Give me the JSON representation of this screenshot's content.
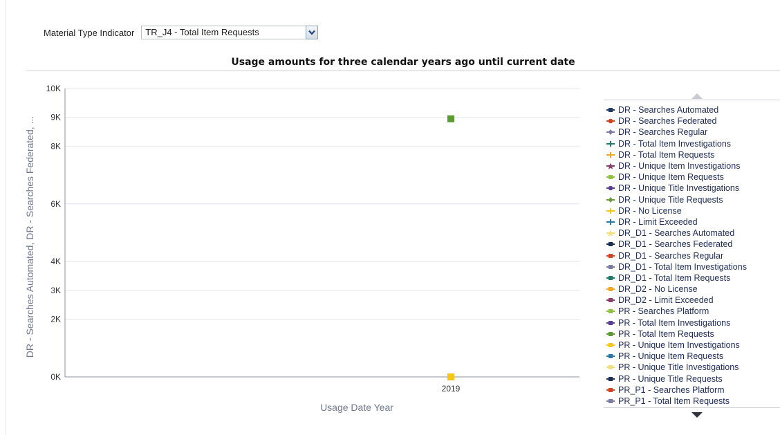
{
  "filter": {
    "label": "Material Type Indicator",
    "selected": "TR_J4 - Total Item Requests"
  },
  "chart_data": {
    "type": "scatter",
    "title": "Usage amounts for three calendar years ago until current date",
    "xlabel": "Usage Date Year",
    "ylabel": "DR - Searches Automated, DR - Searches Federated, ...",
    "categories": [
      "2019"
    ],
    "ylim": [
      0,
      10000
    ],
    "yticks": [
      {
        "value": 0,
        "label": "0K"
      },
      {
        "value": 2000,
        "label": "2K"
      },
      {
        "value": 3000,
        "label": "3K"
      },
      {
        "value": 4000,
        "label": "4K"
      },
      {
        "value": 6000,
        "label": "6K"
      },
      {
        "value": 8000,
        "label": "8K"
      },
      {
        "value": 9000,
        "label": "9K"
      },
      {
        "value": 10000,
        "label": "10K"
      }
    ],
    "grid": true,
    "legend_position": "right",
    "series": [
      {
        "name": "DR - Searches Automated",
        "color": "#1f3a66",
        "marker": "square"
      },
      {
        "name": "DR - Searches Federated",
        "color": "#d2451e",
        "marker": "circle"
      },
      {
        "name": "DR - Searches Regular",
        "color": "#7b7ba8",
        "marker": "diamond"
      },
      {
        "name": "DR - Total Item Investigations",
        "color": "#1f7a6e",
        "marker": "plus"
      },
      {
        "name": "DR - Total Item Requests",
        "color": "#f5a623",
        "marker": "plus"
      },
      {
        "name": "DR - Unique Item Investigations",
        "color": "#8e3b6e",
        "marker": "star"
      },
      {
        "name": "DR - Unique Item Requests",
        "color": "#8cc43f",
        "marker": "square"
      },
      {
        "name": "DR - Unique Title Investigations",
        "color": "#5b3f96",
        "marker": "circle"
      },
      {
        "name": "DR - Unique Title Requests",
        "color": "#6a9a3a",
        "marker": "diamond"
      },
      {
        "name": "DR - No License",
        "color": "#f5c518",
        "marker": "plus"
      },
      {
        "name": "DR - Limit Exceeded",
        "color": "#2a7aa8",
        "marker": "plus"
      },
      {
        "name": "DR_D1 - Searches Automated",
        "color": "#f4e07a",
        "marker": "star"
      },
      {
        "name": "DR_D1 - Searches Federated",
        "color": "#1a2f55",
        "marker": "square"
      },
      {
        "name": "DR_D1 - Searches Regular",
        "color": "#d2451e",
        "marker": "square"
      },
      {
        "name": "DR_D1 - Total Item Investigations",
        "color": "#7b7ba8",
        "marker": "square"
      },
      {
        "name": "DR_D1 - Total Item Requests",
        "color": "#1f7a6e",
        "marker": "square"
      },
      {
        "name": "DR_D2 - No License",
        "color": "#f5a623",
        "marker": "square"
      },
      {
        "name": "DR_D2 - Limit Exceeded",
        "color": "#8e3b6e",
        "marker": "square"
      },
      {
        "name": "PR - Searches Platform",
        "color": "#8cc43f",
        "marker": "square"
      },
      {
        "name": "PR - Total Item Investigations",
        "color": "#5b3f96",
        "marker": "square"
      },
      {
        "name": "PR - Total Item Requests",
        "color": "#5a9a32",
        "marker": "square",
        "points": [
          {
            "x": "2019",
            "y": 8950
          }
        ]
      },
      {
        "name": "PR - Unique Item Investigations",
        "color": "#f5c518",
        "marker": "square",
        "points": [
          {
            "x": "2019",
            "y": 0
          }
        ]
      },
      {
        "name": "PR - Unique Item Requests",
        "color": "#2a7aa8",
        "marker": "square"
      },
      {
        "name": "PR - Unique Title Investigations",
        "color": "#f4e07a",
        "marker": "square"
      },
      {
        "name": "PR - Unique Title Requests",
        "color": "#1a2f55",
        "marker": "square"
      },
      {
        "name": "PR_P1 - Searches Platform",
        "color": "#d2451e",
        "marker": "square"
      },
      {
        "name": "PR_P1 - Total Item Requests",
        "color": "#7b7ba8",
        "marker": "square"
      }
    ]
  }
}
